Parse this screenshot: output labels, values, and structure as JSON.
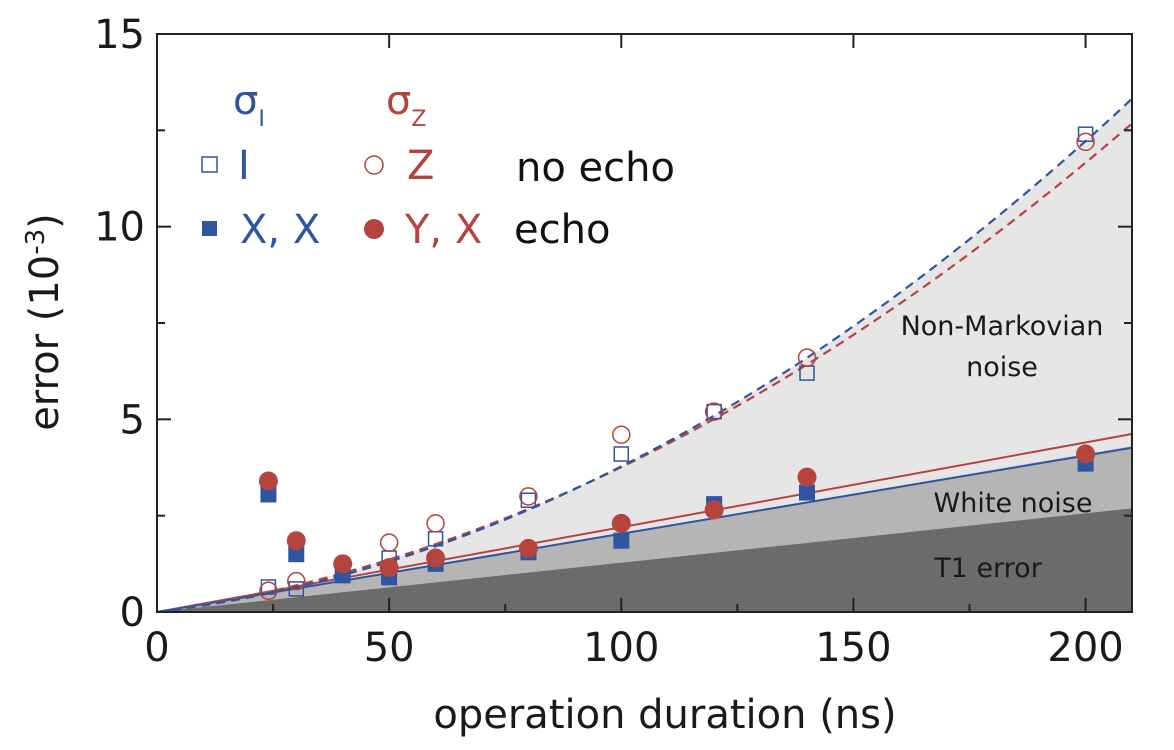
{
  "chart_data": {
    "type": "scatter",
    "xlabel": "operation duration (ns)",
    "ylabel_main": "error (10",
    "ylabel_exp": "-3",
    "ylabel_close": ")",
    "xlim": [
      0,
      210
    ],
    "ylim": [
      0,
      15
    ],
    "xticks": [
      0,
      50,
      100,
      150,
      200
    ],
    "yticks": [
      0,
      5,
      10,
      15
    ],
    "xtick_labels": [
      "0",
      "50",
      "100",
      "150",
      "200"
    ],
    "ytick_labels": [
      "0",
      "5",
      "10",
      "15"
    ],
    "colors": {
      "blue": "#2f55a0",
      "red": "#b5433e"
    },
    "regions": [
      {
        "label": "T1 error",
        "slope": 0.0128,
        "color": "#6b6b6b"
      },
      {
        "label": "White noise",
        "slope": 0.0205,
        "color": "#b5b5b5"
      },
      {
        "label_line1": "Non-Markovian",
        "label_line2": "noise",
        "color": "#e6e6e6"
      }
    ],
    "fit_lines": [
      {
        "style": "solid",
        "color": "red",
        "slope": 0.022
      },
      {
        "style": "solid",
        "color": "blue",
        "slope": 0.0203
      },
      {
        "style": "dashed",
        "color": "red",
        "a": 0.0169,
        "b": 0.000207
      },
      {
        "style": "dashed",
        "color": "blue",
        "a": 0.0145,
        "b": 0.000233
      }
    ],
    "legend": {
      "col1_header": "σ",
      "col1_sub": "I",
      "col2_header": "σ",
      "col2_sub": "Z",
      "rows": [
        {
          "label1": "I",
          "label2": "Z",
          "tag": "no echo"
        },
        {
          "label1": "X, X",
          "label2": "Y, X",
          "tag": "echo"
        }
      ]
    },
    "series": [
      {
        "name": "I",
        "marker": "open-square",
        "color": "blue",
        "x": [
          24,
          30,
          50,
          60,
          80,
          100,
          120,
          140,
          200
        ],
        "y": [
          0.65,
          0.6,
          1.4,
          1.9,
          2.9,
          4.1,
          5.2,
          6.2,
          12.4
        ]
      },
      {
        "name": "Z",
        "marker": "open-circle",
        "color": "red",
        "x": [
          24,
          30,
          50,
          60,
          80,
          100,
          120,
          140,
          200
        ],
        "y": [
          0.55,
          0.8,
          1.8,
          2.3,
          3.0,
          4.6,
          5.2,
          6.6,
          12.2
        ]
      },
      {
        "name": "X, X",
        "marker": "filled-square",
        "color": "blue",
        "x": [
          24,
          30,
          40,
          50,
          60,
          80,
          100,
          120,
          140,
          200
        ],
        "y": [
          3.05,
          1.5,
          0.95,
          0.9,
          1.25,
          1.55,
          1.85,
          2.8,
          3.1,
          3.85
        ]
      },
      {
        "name": "Y, X",
        "marker": "filled-circle",
        "color": "red",
        "x": [
          24,
          30,
          40,
          50,
          60,
          80,
          100,
          120,
          140,
          200
        ],
        "y": [
          3.4,
          1.85,
          1.25,
          1.15,
          1.4,
          1.65,
          2.3,
          2.65,
          3.5,
          4.1
        ]
      }
    ]
  }
}
